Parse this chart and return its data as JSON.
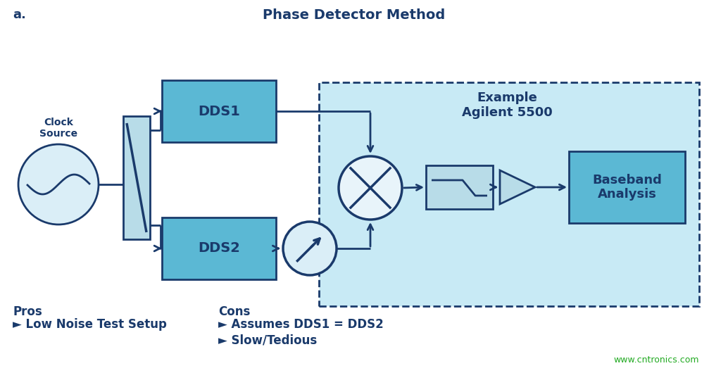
{
  "title": "Phase Detector Method",
  "label_a": "a.",
  "bg_color": "#ffffff",
  "dark_blue": "#1a3a6b",
  "box_fill": "#5bb8d4",
  "light_bg": "#b8dce8",
  "dashed_bg": "#c8eaf5",
  "mixer_fill": "#e8f4fa",
  "clock_fill": "#daeef7",
  "pros_label": "Pros",
  "pros_items": [
    "► Low Noise Test Setup"
  ],
  "cons_label": "Cons",
  "cons_items": [
    "► Assumes DDS1 = DDS2",
    "► Slow/Tedious"
  ],
  "website": "www.cntronics.com",
  "example_label": "Example\nAgilent 5500",
  "dds1_label": "DDS1",
  "dds2_label": "DDS2",
  "baseband_label": "Baseband\nAnalysis",
  "clock_label": "Clock\nSource"
}
